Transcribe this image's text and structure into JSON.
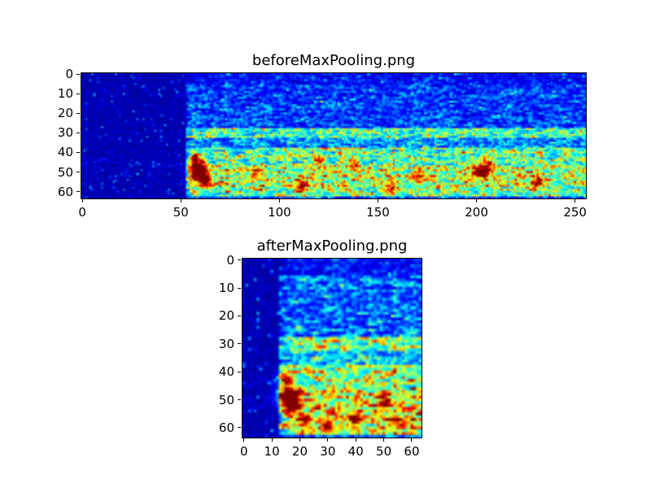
{
  "chart_data": [
    {
      "type": "heatmap",
      "title": "beforeMaxPooling.png",
      "colormap": "jet",
      "cols": 256,
      "rows": 64,
      "x_range": [
        0,
        255
      ],
      "y_range": [
        0,
        63
      ],
      "y_inverted": true,
      "x_ticks": [
        0,
        50,
        100,
        150,
        200,
        250
      ],
      "y_ticks": [
        0,
        10,
        20,
        30,
        40,
        50,
        60
      ],
      "legend": "none",
      "grid": false,
      "description": "Spectrogram-like feature map before max pooling: dark-blue silent region on the left, scattered blue/cyan noise in upper rows, a bright cyan horizontal band near row 30, and high-energy cyan/green/yellow texture with red hotspots in rows 38-62.",
      "seed": 7,
      "silence_end_col": 53,
      "silence_base": 0.02,
      "silence_var": 0.18,
      "bands": [
        {
          "rows": [
            0,
            5
          ],
          "base": 0.07,
          "var": 0.16
        },
        {
          "rows": [
            6,
            27
          ],
          "base": 0.1,
          "var": 0.24
        },
        {
          "rows": [
            28,
            32
          ],
          "base": 0.3,
          "var": 0.42
        },
        {
          "rows": [
            33,
            37
          ],
          "base": 0.16,
          "var": 0.3
        },
        {
          "rows": [
            38,
            46
          ],
          "base": 0.3,
          "var": 0.46
        },
        {
          "rows": [
            47,
            57
          ],
          "base": 0.38,
          "var": 0.52
        },
        {
          "rows": [
            58,
            62
          ],
          "base": 0.33,
          "var": 0.48
        },
        {
          "rows": [
            63,
            63
          ],
          "base": 0.12,
          "var": 0.18
        }
      ],
      "hotspots": [
        [
          59,
          50,
          0.75,
          3.0
        ],
        [
          62,
          55,
          0.55,
          2.4
        ],
        [
          57,
          44,
          0.5,
          2.0
        ],
        [
          88,
          50,
          0.45,
          2.0
        ],
        [
          111,
          57,
          0.5,
          2.4
        ],
        [
          120,
          44,
          0.4,
          2.0
        ],
        [
          138,
          46,
          0.45,
          2.0
        ],
        [
          156,
          58,
          0.4,
          2.0
        ],
        [
          171,
          52,
          0.4,
          2.0
        ],
        [
          203,
          50,
          0.65,
          2.4
        ],
        [
          206,
          46,
          0.4,
          2.0
        ],
        [
          230,
          55,
          0.4,
          2.0
        ]
      ]
    },
    {
      "type": "heatmap",
      "title": "afterMaxPooling.png",
      "colormap": "jet",
      "cols": 64,
      "rows": 64,
      "x_range": [
        0,
        63
      ],
      "y_range": [
        0,
        63
      ],
      "y_inverted": true,
      "x_ticks": [
        0,
        10,
        20,
        30,
        40,
        50,
        60
      ],
      "y_ticks": [
        0,
        10,
        20,
        30,
        40,
        50,
        60
      ],
      "legend": "none",
      "grid": false,
      "description": "Same feature map after max pooling (downsampled to 64 columns): narrow dark silent strip on the left, bright cyan band near row 30, and dense cyan/yellow energy with red hotspots in rows 38-62.",
      "seed": 11,
      "silence_end_col": 13,
      "silence_base": 0.02,
      "silence_var": 0.18,
      "bands": [
        {
          "rows": [
            0,
            5
          ],
          "base": 0.08,
          "var": 0.18
        },
        {
          "rows": [
            6,
            27
          ],
          "base": 0.12,
          "var": 0.28
        },
        {
          "rows": [
            28,
            32
          ],
          "base": 0.34,
          "var": 0.46
        },
        {
          "rows": [
            33,
            37
          ],
          "base": 0.2,
          "var": 0.34
        },
        {
          "rows": [
            38,
            46
          ],
          "base": 0.36,
          "var": 0.5
        },
        {
          "rows": [
            47,
            57
          ],
          "base": 0.42,
          "var": 0.55
        },
        {
          "rows": [
            58,
            62
          ],
          "base": 0.38,
          "var": 0.52
        },
        {
          "rows": [
            63,
            63
          ],
          "base": 0.14,
          "var": 0.2
        }
      ],
      "hotspots": [
        [
          16,
          49,
          0.85,
          2.4
        ],
        [
          17,
          52,
          0.55,
          2.0
        ],
        [
          15,
          43,
          0.5,
          1.8
        ],
        [
          22,
          58,
          0.45,
          1.8
        ],
        [
          30,
          59,
          0.45,
          1.8
        ],
        [
          40,
          57,
          0.5,
          1.8
        ],
        [
          50,
          51,
          0.45,
          1.8
        ],
        [
          55,
          58,
          0.4,
          1.8
        ]
      ]
    }
  ],
  "colors": {
    "figure_background": "#ffffff",
    "axes_edge": "#000000",
    "colormap_low": "#000080",
    "colormap_high": "#800000",
    "text": "#000000"
  }
}
